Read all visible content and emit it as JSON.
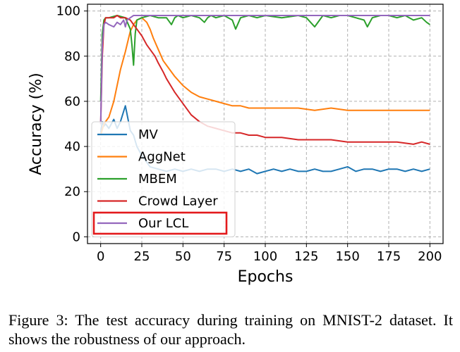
{
  "chart_data": {
    "type": "line",
    "xlabel": "Epochs",
    "ylabel": "Accuracy (%)",
    "xlim": [
      -8,
      208
    ],
    "ylim": [
      -3,
      103
    ],
    "xticks": [
      0,
      25,
      50,
      75,
      100,
      125,
      150,
      175,
      200
    ],
    "yticks": [
      0,
      20,
      40,
      60,
      80,
      100
    ],
    "grid": true,
    "legend_position": "lower-left",
    "highlighted_series": "Our LCL",
    "highlight_color": "#e31a1c",
    "series": [
      {
        "name": "MV",
        "color": "#1f77b4",
        "x": [
          0,
          1,
          2,
          3,
          5,
          8,
          10,
          12,
          15,
          18,
          20,
          22,
          25,
          28,
          30,
          35,
          40,
          45,
          50,
          55,
          60,
          65,
          70,
          75,
          80,
          85,
          90,
          95,
          100,
          105,
          110,
          115,
          120,
          125,
          130,
          135,
          140,
          145,
          150,
          155,
          160,
          165,
          170,
          175,
          180,
          185,
          190,
          195,
          200
        ],
        "y": [
          46,
          51,
          49,
          50,
          48,
          52,
          48,
          51,
          58,
          47,
          45,
          40,
          36,
          33,
          31,
          30,
          29,
          30,
          29,
          30,
          29,
          30,
          30,
          29,
          30,
          29,
          30,
          28,
          29,
          30,
          29,
          30,
          29,
          29,
          30,
          29,
          29,
          30,
          31,
          29,
          30,
          30,
          29,
          30,
          30,
          29,
          30,
          29,
          30
        ]
      },
      {
        "name": "AggNet",
        "color": "#ff7f0e",
        "x": [
          0,
          2,
          5,
          8,
          10,
          12,
          15,
          17,
          18,
          20,
          22,
          25,
          28,
          30,
          32,
          35,
          38,
          40,
          45,
          50,
          55,
          60,
          65,
          70,
          75,
          80,
          85,
          90,
          95,
          100,
          110,
          120,
          130,
          140,
          150,
          160,
          170,
          180,
          190,
          200
        ],
        "y": [
          45,
          50,
          53,
          60,
          67,
          74,
          82,
          88,
          91,
          94,
          96,
          97,
          95,
          92,
          88,
          83,
          78,
          76,
          71,
          67,
          64,
          62,
          61,
          60,
          59,
          58,
          58,
          57,
          57,
          57,
          57,
          57,
          56,
          57,
          56,
          56,
          56,
          56,
          56,
          56
        ]
      },
      {
        "name": "MBEM",
        "color": "#2ca02c",
        "x": [
          0,
          1,
          2,
          3,
          5,
          10,
          15,
          18,
          19,
          20,
          21,
          22,
          25,
          30,
          35,
          40,
          43,
          45,
          47,
          50,
          55,
          60,
          63,
          65,
          67,
          70,
          75,
          80,
          82,
          85,
          90,
          95,
          100,
          110,
          120,
          125,
          130,
          135,
          140,
          145,
          150,
          155,
          160,
          162,
          165,
          170,
          175,
          180,
          185,
          190,
          195,
          198,
          200
        ],
        "y": [
          60,
          90,
          96,
          97,
          97,
          98,
          97,
          92,
          85,
          76,
          90,
          96,
          97,
          98,
          97,
          97,
          94,
          97,
          98,
          97,
          98,
          97,
          95,
          97,
          98,
          97,
          98,
          96,
          92,
          97,
          98,
          97,
          98,
          97,
          98,
          97,
          93,
          98,
          97,
          98,
          98,
          97,
          96,
          93,
          97,
          98,
          98,
          97,
          98,
          96,
          97,
          95,
          94
        ]
      },
      {
        "name": "Crowd Layer",
        "color": "#d62728",
        "x": [
          0,
          1,
          2,
          3,
          5,
          8,
          10,
          12,
          15,
          18,
          20,
          22,
          25,
          28,
          30,
          33,
          35,
          38,
          40,
          45,
          50,
          55,
          60,
          65,
          70,
          75,
          80,
          85,
          90,
          95,
          100,
          110,
          120,
          130,
          140,
          150,
          160,
          170,
          180,
          190,
          195,
          200
        ],
        "y": [
          50,
          80,
          94,
          97,
          97,
          97,
          98,
          97,
          97,
          96,
          94,
          92,
          89,
          85,
          83,
          80,
          77,
          73,
          70,
          64,
          59,
          54,
          51,
          49,
          48,
          47,
          46,
          46,
          45,
          45,
          44,
          44,
          43,
          43,
          43,
          42,
          42,
          42,
          42,
          41,
          42,
          41
        ]
      },
      {
        "name": "Our LCL",
        "color": "#9467bd",
        "x": [
          0,
          1,
          2,
          3,
          5,
          8,
          10,
          12,
          14,
          15,
          16,
          18,
          20,
          25,
          30,
          40,
          50,
          60,
          80,
          100,
          120,
          140,
          160,
          180,
          200
        ],
        "y": [
          50,
          85,
          94,
          95,
          94,
          93,
          95,
          94,
          96,
          93,
          96,
          97,
          98,
          98,
          98,
          98,
          98,
          98,
          98,
          98,
          98,
          98,
          98,
          98,
          98
        ]
      }
    ]
  },
  "caption": "Figure 3: The test accuracy during training on MNIST-2 dataset. It shows the robustness of our approach."
}
